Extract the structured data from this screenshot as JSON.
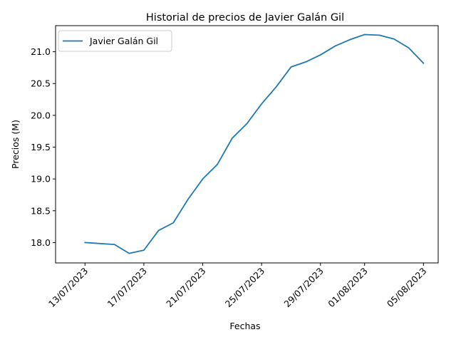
{
  "chart_data": {
    "type": "line",
    "title": "Historial de precios de Javier Galán Gil",
    "xlabel": "Fechas",
    "ylabel": "Precios (M)",
    "x_ticks": [
      "13/07/2023",
      "17/07/2023",
      "21/07/2023",
      "25/07/2023",
      "29/07/2023",
      "01/08/2023",
      "05/08/2023"
    ],
    "y_ticks": [
      "18.0",
      "18.5",
      "19.0",
      "19.5",
      "20.0",
      "20.5",
      "21.0"
    ],
    "ylim": [
      17.68,
      21.41
    ],
    "xlim": [
      "11/07/2023",
      "06/08/2023"
    ],
    "legend_position": "top-left",
    "grid": false,
    "series": [
      {
        "name": "Javier Galán Gil",
        "color": "#1f77b4",
        "x": [
          "13/07/2023",
          "15/07/2023",
          "16/07/2023",
          "17/07/2023",
          "18/07/2023",
          "19/07/2023",
          "20/07/2023",
          "21/07/2023",
          "22/07/2023",
          "23/07/2023",
          "24/07/2023",
          "25/07/2023",
          "26/07/2023",
          "27/07/2023",
          "28/07/2023",
          "29/07/2023",
          "30/07/2023",
          "31/07/2023",
          "01/08/2023",
          "02/08/2023",
          "03/08/2023",
          "04/08/2023",
          "05/08/2023"
        ],
        "values": [
          18.0,
          17.97,
          17.83,
          17.88,
          18.19,
          18.31,
          18.68,
          19.0,
          19.23,
          19.64,
          19.87,
          20.18,
          20.45,
          20.76,
          20.84,
          20.95,
          21.09,
          21.19,
          21.27,
          21.26,
          21.2,
          21.06,
          20.82
        ]
      }
    ]
  }
}
